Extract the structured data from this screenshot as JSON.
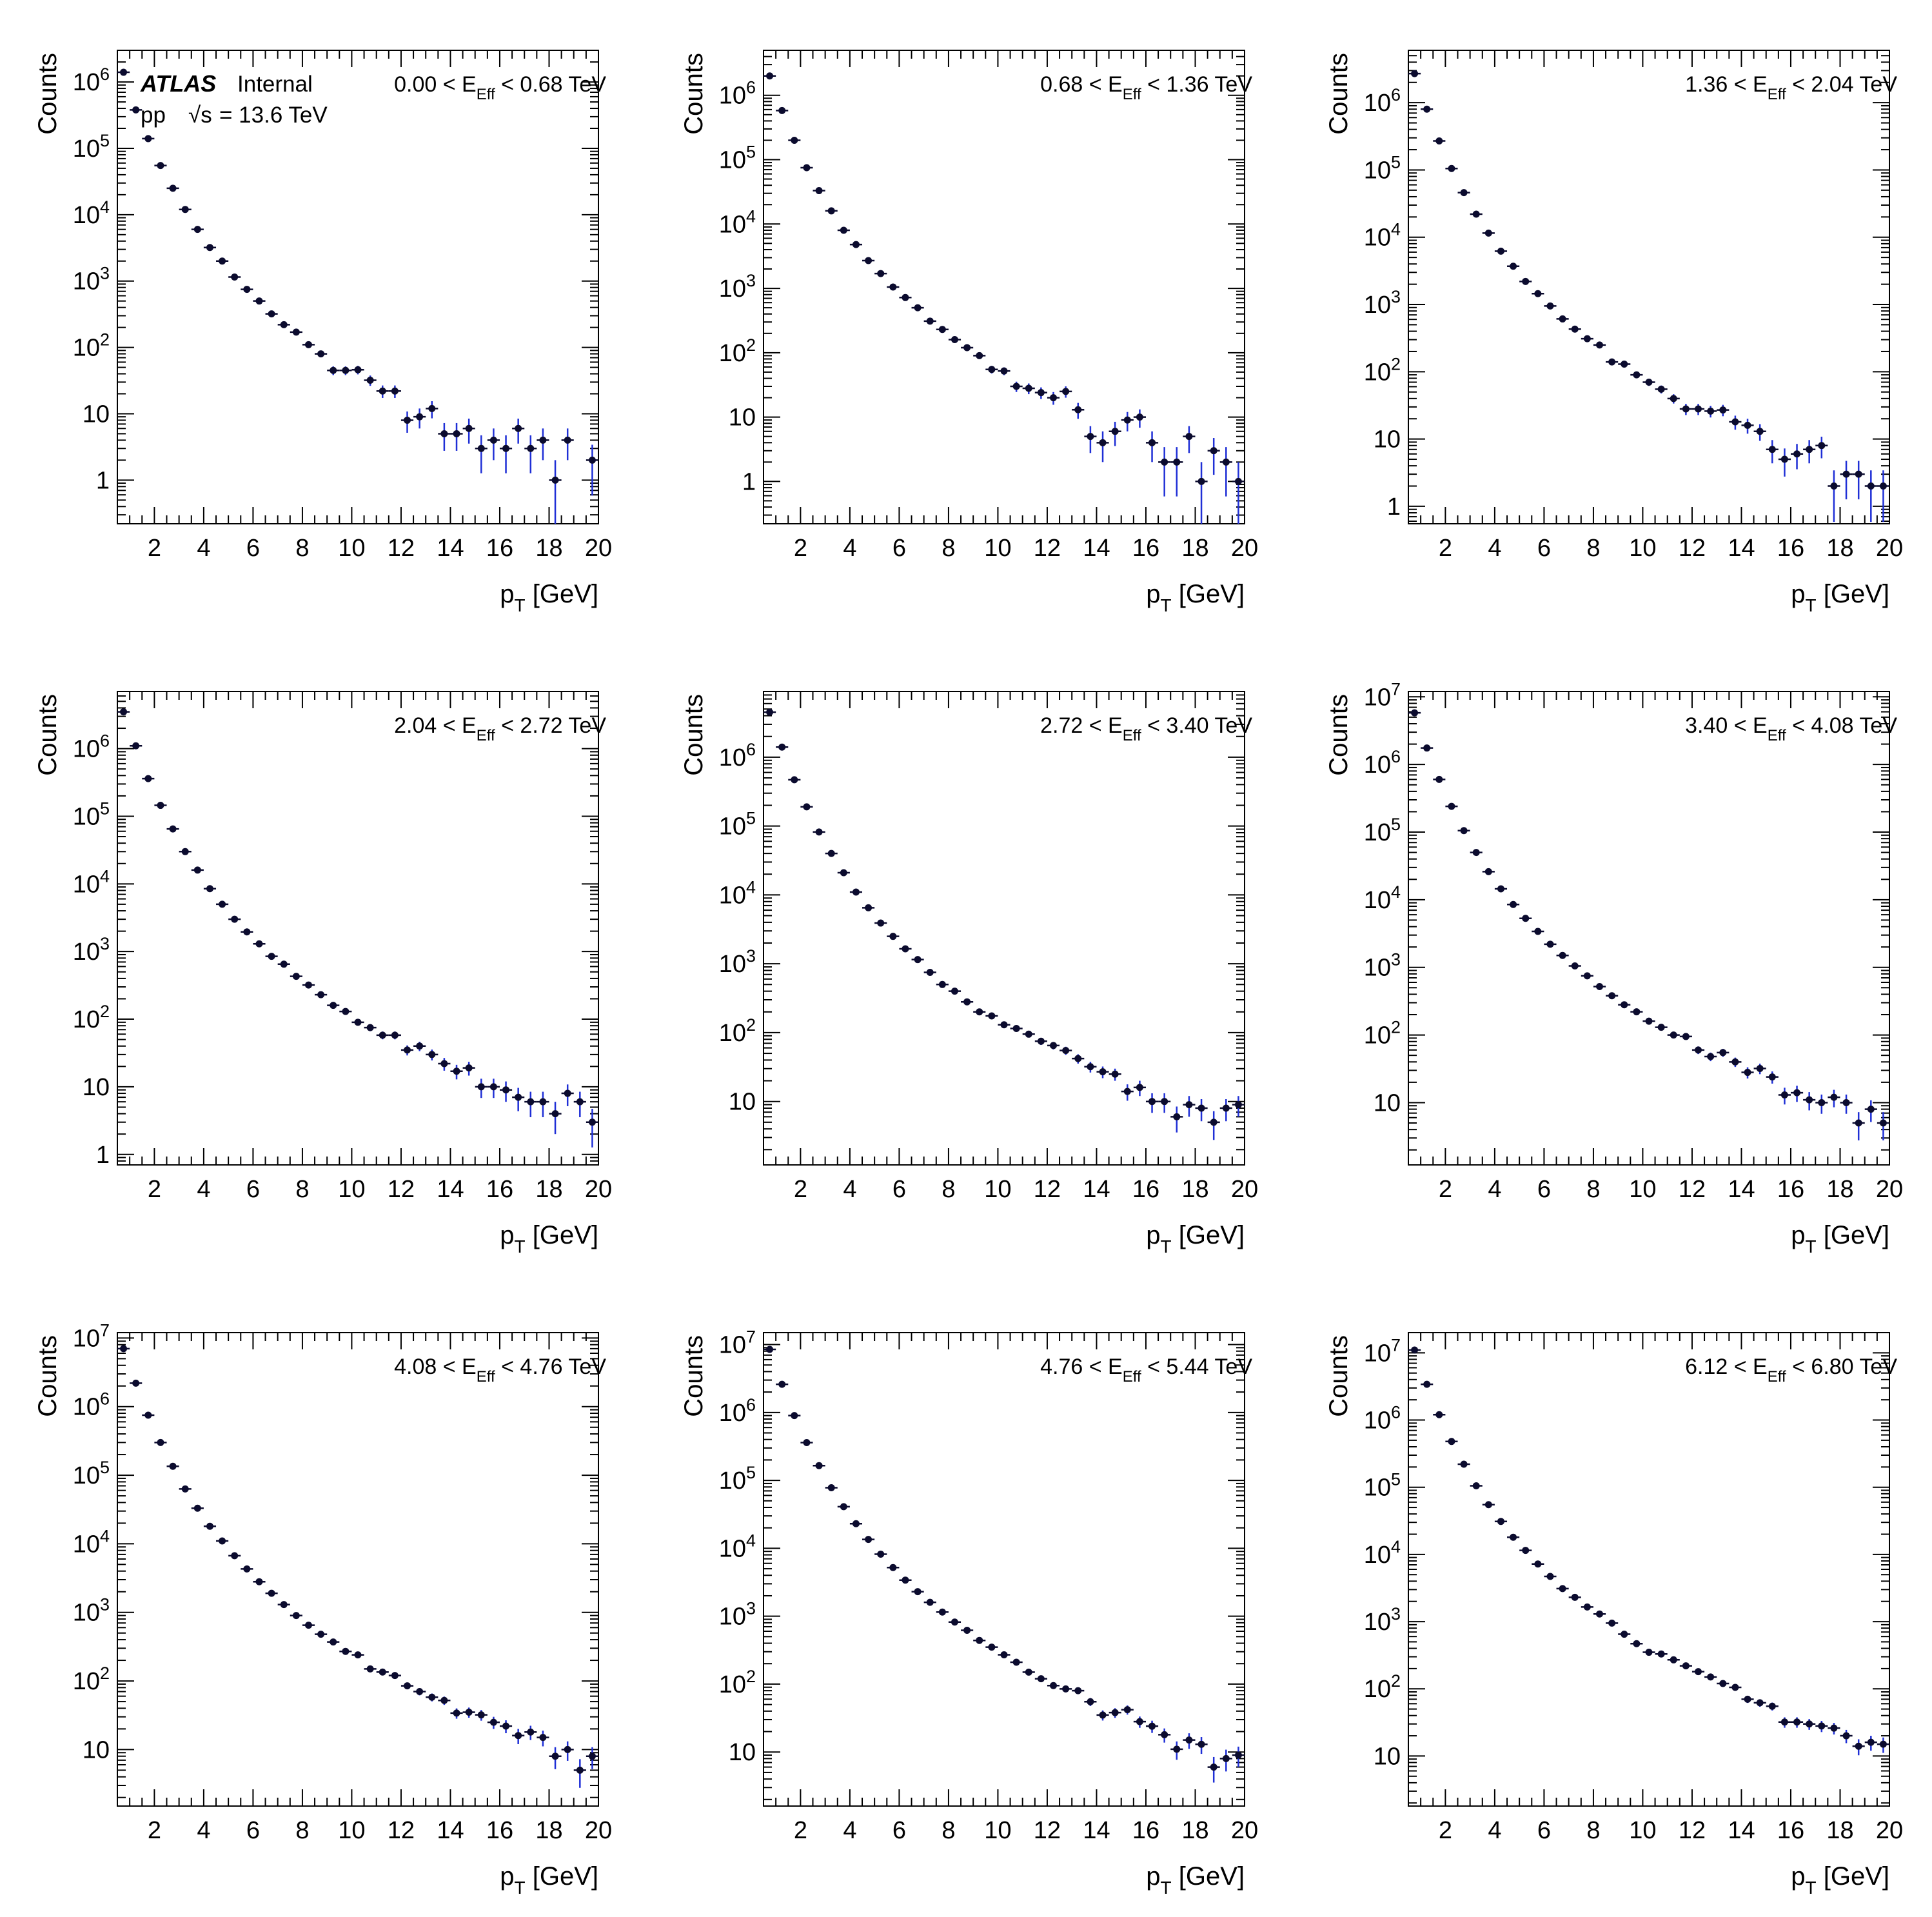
{
  "figure": {
    "atlas_label": "ATLAS",
    "internal_label": "Internal",
    "pp_label": "pp",
    "energy_label": "= 13.6 TeV",
    "sqrt_s_label": "√s"
  },
  "colors": {
    "marker": "#0b0b2e",
    "error_bar": "#1f2fd6",
    "axis": "#000000"
  },
  "chart_data": [
    {
      "type": "scatter",
      "title": "",
      "region": "0.00 < E_Eff < 0.68 TeV",
      "region_parts": [
        "0.00 < E",
        "Eff",
        " < 0.68 TeV"
      ],
      "xlabel": "p_T [GeV]",
      "ylabel": "Counts",
      "xlim": [
        0.5,
        20
      ],
      "ylim": [
        0.22,
        3000000
      ],
      "yscale": "log",
      "xticks": [
        2,
        4,
        6,
        8,
        10,
        12,
        14,
        16,
        18,
        20
      ],
      "x": [
        0.75,
        1.25,
        1.75,
        2.25,
        2.75,
        3.25,
        3.75,
        4.25,
        4.75,
        5.25,
        5.75,
        6.25,
        6.75,
        7.25,
        7.75,
        8.25,
        8.75,
        9.25,
        9.75,
        10.25,
        10.75,
        11.25,
        11.75,
        12.25,
        12.75,
        13.25,
        13.75,
        14.25,
        14.75,
        15.25,
        15.75,
        16.25,
        16.75,
        17.25,
        17.75,
        18.25,
        18.75,
        19.75
      ],
      "y": [
        1400000,
        380000,
        140000,
        55000,
        25000,
        12000,
        6000,
        3200,
        2000,
        1150,
        750,
        500,
        320,
        220,
        170,
        110,
        80,
        45,
        45,
        46,
        32,
        22,
        22,
        8,
        9,
        12,
        5,
        5,
        6,
        3,
        4,
        3,
        6,
        3,
        4,
        1,
        4,
        2
      ]
    },
    {
      "type": "scatter",
      "title": "",
      "region": "0.68 < E_Eff < 1.36 TeV",
      "region_parts": [
        "0.68 < E",
        "Eff",
        " < 1.36 TeV"
      ],
      "xlabel": "p_T [GeV]",
      "ylabel": "Counts",
      "xlim": [
        0.5,
        20
      ],
      "ylim": [
        0.22,
        5000000
      ],
      "yscale": "log",
      "xticks": [
        2,
        4,
        6,
        8,
        10,
        12,
        14,
        16,
        18,
        20
      ],
      "x": [
        0.75,
        1.25,
        1.75,
        2.25,
        2.75,
        3.25,
        3.75,
        4.25,
        4.75,
        5.25,
        5.75,
        6.25,
        6.75,
        7.25,
        7.75,
        8.25,
        8.75,
        9.25,
        9.75,
        10.25,
        10.75,
        11.25,
        11.75,
        12.25,
        12.75,
        13.25,
        13.75,
        14.25,
        14.75,
        15.25,
        15.75,
        16.25,
        16.75,
        17.25,
        17.75,
        18.25,
        18.75,
        19.25,
        19.75
      ],
      "y": [
        2000000,
        580000,
        200000,
        75000,
        33000,
        16000,
        8000,
        4800,
        2700,
        1700,
        1050,
        720,
        500,
        310,
        230,
        160,
        120,
        90,
        55,
        52,
        30,
        28,
        24,
        20,
        25,
        13,
        5,
        4,
        6,
        9,
        10,
        4,
        2,
        2,
        5,
        1,
        3,
        2,
        1
      ]
    },
    {
      "type": "scatter",
      "title": "",
      "region": "1.36 < E_Eff < 2.04 TeV",
      "region_parts": [
        "1.36 < E",
        "Eff",
        " < 2.04 TeV"
      ],
      "xlabel": "p_T [GeV]",
      "ylabel": "Counts",
      "xlim": [
        0.5,
        20
      ],
      "ylim": [
        0.55,
        6000000
      ],
      "yscale": "log",
      "xticks": [
        2,
        4,
        6,
        8,
        10,
        12,
        14,
        16,
        18,
        20
      ],
      "x": [
        0.75,
        1.25,
        1.75,
        2.25,
        2.75,
        3.25,
        3.75,
        4.25,
        4.75,
        5.25,
        5.75,
        6.25,
        6.75,
        7.25,
        7.75,
        8.25,
        8.75,
        9.25,
        9.75,
        10.25,
        10.75,
        11.25,
        11.75,
        12.25,
        12.75,
        13.25,
        13.75,
        14.25,
        14.75,
        15.25,
        15.75,
        16.25,
        16.75,
        17.25,
        17.75,
        18.25,
        18.75,
        19.25,
        19.75
      ],
      "y": [
        2700000,
        800000,
        270000,
        105000,
        46000,
        22000,
        11500,
        6200,
        3700,
        2200,
        1450,
        950,
        610,
        430,
        310,
        250,
        140,
        130,
        90,
        70,
        55,
        40,
        28,
        28,
        26,
        27,
        18,
        16,
        13,
        7,
        5,
        6,
        7,
        8,
        2,
        3,
        3,
        2,
        2
      ]
    },
    {
      "type": "scatter",
      "title": "",
      "region": "2.04 < E_Eff < 2.72 TeV",
      "region_parts": [
        "2.04 < E",
        "Eff",
        " < 2.72 TeV"
      ],
      "xlabel": "p_T [GeV]",
      "ylabel": "Counts",
      "xlim": [
        0.5,
        20
      ],
      "ylim": [
        0.7,
        7000000
      ],
      "yscale": "log",
      "xticks": [
        2,
        4,
        6,
        8,
        10,
        12,
        14,
        16,
        18,
        20
      ],
      "x": [
        0.75,
        1.25,
        1.75,
        2.25,
        2.75,
        3.25,
        3.75,
        4.25,
        4.75,
        5.25,
        5.75,
        6.25,
        6.75,
        7.25,
        7.75,
        8.25,
        8.75,
        9.25,
        9.75,
        10.25,
        10.75,
        11.25,
        11.75,
        12.25,
        12.75,
        13.25,
        13.75,
        14.25,
        14.75,
        15.25,
        15.75,
        16.25,
        16.75,
        17.25,
        17.75,
        18.25,
        18.75,
        19.25,
        19.75
      ],
      "y": [
        3500000,
        1100000,
        360000,
        145000,
        65000,
        30000,
        16000,
        8500,
        5000,
        3000,
        1950,
        1300,
        850,
        650,
        430,
        320,
        230,
        160,
        130,
        90,
        75,
        58,
        58,
        35,
        40,
        30,
        22,
        17,
        19,
        10,
        10,
        9,
        7,
        6,
        6,
        4,
        8,
        6,
        3
      ]
    },
    {
      "type": "scatter",
      "title": "",
      "region": "2.72 < E_Eff < 3.40 TeV",
      "region_parts": [
        "2.72 < E",
        "Eff",
        " < 3.40 TeV"
      ],
      "xlabel": "p_T [GeV]",
      "ylabel": "Counts",
      "xlim": [
        0.5,
        20
      ],
      "ylim": [
        1.2,
        9000000
      ],
      "yscale": "log",
      "xticks": [
        2,
        4,
        6,
        8,
        10,
        12,
        14,
        16,
        18,
        20
      ],
      "x": [
        0.75,
        1.25,
        1.75,
        2.25,
        2.75,
        3.25,
        3.75,
        4.25,
        4.75,
        5.25,
        5.75,
        6.25,
        6.75,
        7.25,
        7.75,
        8.25,
        8.75,
        9.25,
        9.75,
        10.25,
        10.75,
        11.25,
        11.75,
        12.25,
        12.75,
        13.25,
        13.75,
        14.25,
        14.75,
        15.25,
        15.75,
        16.25,
        16.75,
        17.25,
        17.75,
        18.25,
        18.75,
        19.25,
        19.75
      ],
      "y": [
        4500000,
        1400000,
        470000,
        190000,
        82000,
        40000,
        21000,
        11000,
        6500,
        3900,
        2500,
        1650,
        1150,
        750,
        500,
        400,
        280,
        200,
        175,
        130,
        115,
        95,
        75,
        65,
        55,
        42,
        32,
        27,
        25,
        14,
        16,
        10,
        10,
        6,
        9,
        8,
        5,
        8,
        9
      ]
    },
    {
      "type": "scatter",
      "title": "",
      "region": "3.40 < E_Eff < 4.08 TeV",
      "region_parts": [
        "3.40 < E",
        "Eff",
        " < 4.08 TeV"
      ],
      "xlabel": "p_T [GeV]",
      "ylabel": "Counts",
      "xlim": [
        0.5,
        20
      ],
      "ylim": [
        1.2,
        12000000
      ],
      "yscale": "log",
      "xticks": [
        2,
        4,
        6,
        8,
        10,
        12,
        14,
        16,
        18,
        20
      ],
      "x": [
        0.75,
        1.25,
        1.75,
        2.25,
        2.75,
        3.25,
        3.75,
        4.25,
        4.75,
        5.25,
        5.75,
        6.25,
        6.75,
        7.25,
        7.75,
        8.25,
        8.75,
        9.25,
        9.75,
        10.25,
        10.75,
        11.25,
        11.75,
        12.25,
        12.75,
        13.25,
        13.75,
        14.25,
        14.75,
        15.25,
        15.75,
        16.25,
        16.75,
        17.25,
        17.75,
        18.25,
        18.75,
        19.25,
        19.75
      ],
      "y": [
        5800000,
        1750000,
        600000,
        240000,
        105000,
        50000,
        26000,
        14500,
        8500,
        5300,
        3400,
        2200,
        1500,
        1050,
        750,
        520,
        380,
        280,
        220,
        160,
        130,
        100,
        95,
        60,
        48,
        55,
        40,
        28,
        32,
        24,
        13,
        14,
        11,
        10,
        12,
        10,
        5,
        8,
        5
      ]
    },
    {
      "type": "scatter",
      "title": "",
      "region": "4.08 < E_Eff < 4.76 TeV",
      "region_parts": [
        "4.08 < E",
        "Eff",
        " < 4.76 TeV"
      ],
      "xlabel": "p_T [GeV]",
      "ylabel": "Counts",
      "xlim": [
        0.5,
        20
      ],
      "ylim": [
        1.5,
        12000000
      ],
      "yscale": "log",
      "xticks": [
        2,
        4,
        6,
        8,
        10,
        12,
        14,
        16,
        18,
        20
      ],
      "x": [
        0.75,
        1.25,
        1.75,
        2.25,
        2.75,
        3.25,
        3.75,
        4.25,
        4.75,
        5.25,
        5.75,
        6.25,
        6.75,
        7.25,
        7.75,
        8.25,
        8.75,
        9.25,
        9.75,
        10.25,
        10.75,
        11.25,
        11.75,
        12.25,
        12.75,
        13.25,
        13.75,
        14.25,
        14.75,
        15.25,
        15.75,
        16.25,
        16.75,
        17.25,
        17.75,
        18.25,
        18.75,
        19.25,
        19.75
      ],
      "y": [
        7000000,
        2200000,
        750000,
        300000,
        135000,
        63000,
        33000,
        18000,
        11000,
        6700,
        4300,
        2800,
        1900,
        1300,
        900,
        650,
        480,
        370,
        270,
        240,
        150,
        135,
        120,
        85,
        70,
        58,
        52,
        34,
        35,
        32,
        25,
        22,
        16,
        18,
        15,
        8,
        10,
        5,
        8
      ]
    },
    {
      "type": "scatter",
      "title": "",
      "region": "4.76 < E_Eff < 5.44 TeV",
      "region_parts": [
        "4.76 < E",
        "Eff",
        " < 5.44 TeV"
      ],
      "xlabel": "p_T [GeV]",
      "ylabel": "Counts",
      "xlim": [
        0.5,
        20
      ],
      "ylim": [
        1.6,
        15000000
      ],
      "yscale": "log",
      "xticks": [
        2,
        4,
        6,
        8,
        10,
        12,
        14,
        16,
        18,
        20
      ],
      "x": [
        0.75,
        1.25,
        1.75,
        2.25,
        2.75,
        3.25,
        3.75,
        4.25,
        4.75,
        5.25,
        5.75,
        6.25,
        6.75,
        7.25,
        7.75,
        8.25,
        8.75,
        9.25,
        9.75,
        10.25,
        10.75,
        11.25,
        11.75,
        12.25,
        12.75,
        13.25,
        13.75,
        14.25,
        14.75,
        15.25,
        15.75,
        16.25,
        16.75,
        17.25,
        17.75,
        18.25,
        18.75,
        19.25,
        19.75
      ],
      "y": [
        8500000,
        2600000,
        900000,
        360000,
        165000,
        78000,
        41000,
        23000,
        13500,
        8200,
        5200,
        3400,
        2300,
        1600,
        1150,
        820,
        620,
        440,
        350,
        270,
        210,
        150,
        120,
        95,
        85,
        80,
        55,
        35,
        38,
        42,
        28,
        24,
        18,
        11,
        15,
        13,
        6,
        8,
        9
      ]
    },
    {
      "type": "scatter",
      "title": "",
      "region": "6.12 < E_Eff < 6.80 TeV",
      "region_parts": [
        "6.12 < E",
        "Eff",
        " < 6.80 TeV"
      ],
      "xlabel": "p_T [GeV]",
      "ylabel": "Counts",
      "xlim": [
        0.5,
        20
      ],
      "ylim": [
        1.8,
        20000000
      ],
      "yscale": "log",
      "xticks": [
        2,
        4,
        6,
        8,
        10,
        12,
        14,
        16,
        18,
        20
      ],
      "x": [
        0.75,
        1.25,
        1.75,
        2.25,
        2.75,
        3.25,
        3.75,
        4.25,
        4.75,
        5.25,
        5.75,
        6.25,
        6.75,
        7.25,
        7.75,
        8.25,
        8.75,
        9.25,
        9.75,
        10.25,
        10.75,
        11.25,
        11.75,
        12.25,
        12.75,
        13.25,
        13.75,
        14.25,
        14.75,
        15.25,
        15.75,
        16.25,
        16.75,
        17.25,
        17.75,
        18.25,
        18.75,
        19.25,
        19.75
      ],
      "y": [
        11000000,
        3400000,
        1200000,
        480000,
        220000,
        105000,
        55000,
        31000,
        18000,
        11500,
        7200,
        4700,
        3100,
        2300,
        1650,
        1300,
        950,
        650,
        470,
        350,
        330,
        270,
        220,
        180,
        150,
        120,
        105,
        70,
        62,
        55,
        32,
        32,
        30,
        28,
        26,
        20,
        14,
        16,
        15
      ]
    }
  ]
}
